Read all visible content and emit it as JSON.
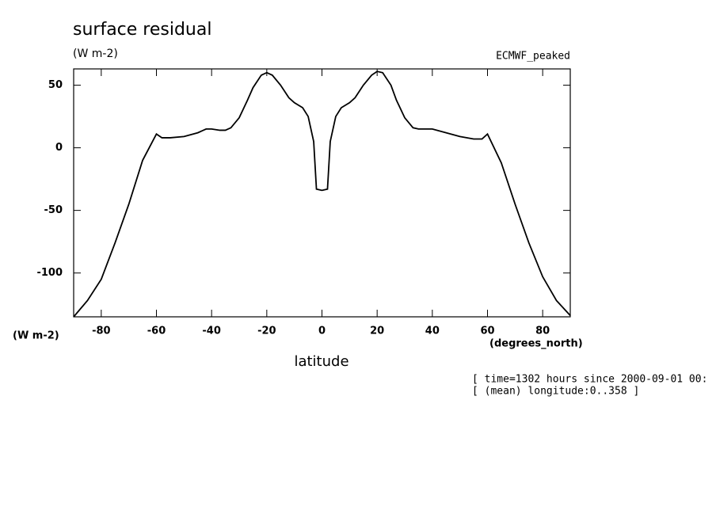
{
  "chart_data": {
    "type": "line",
    "title": "surface residual",
    "subtitle": "(W m-2)",
    "y_label": "(W m-2)",
    "x_label": "latitude",
    "x_units": "(degrees_north)",
    "annotations": [
      "[ time=1302 hours since 2000-09-01 00:",
      "[ (mean) longitude:0..358 ]"
    ],
    "x": [
      -90,
      -85,
      -80,
      -75,
      -70,
      -65,
      -60,
      -58,
      -55,
      -50,
      -45,
      -42,
      -40,
      -37,
      -35,
      -33,
      -30,
      -27,
      -25,
      -22,
      -20,
      -18,
      -15,
      -12,
      -10,
      -7,
      -5,
      -3,
      -2,
      0,
      2,
      3,
      5,
      7,
      10,
      12,
      15,
      18,
      20,
      22,
      25,
      27,
      30,
      33,
      35,
      40,
      45,
      50,
      55,
      58,
      60,
      65,
      70,
      75,
      80,
      85,
      90
    ],
    "series": [
      {
        "name": "ECMWF_peaked",
        "color": "#000000",
        "values": [
          -135,
          -122,
          -105,
          -76,
          -45,
          -10,
          11,
          8,
          8,
          9,
          12,
          15,
          15,
          14,
          14,
          16,
          24,
          38,
          48,
          58,
          60,
          58,
          50,
          40,
          36,
          32,
          25,
          5,
          -33,
          -34,
          -33,
          5,
          25,
          32,
          36,
          40,
          50,
          58,
          61,
          60,
          50,
          38,
          24,
          16,
          15,
          15,
          12,
          9,
          7,
          7,
          11,
          -12,
          -45,
          -76,
          -103,
          -122,
          -134
        ]
      }
    ],
    "xlim": [
      -90,
      90
    ],
    "xticks": [
      -80,
      -60,
      -40,
      -20,
      0,
      20,
      40,
      60,
      80
    ],
    "ylim": [
      -135,
      63
    ],
    "yticks": [
      -100,
      -50,
      0,
      50
    ]
  }
}
